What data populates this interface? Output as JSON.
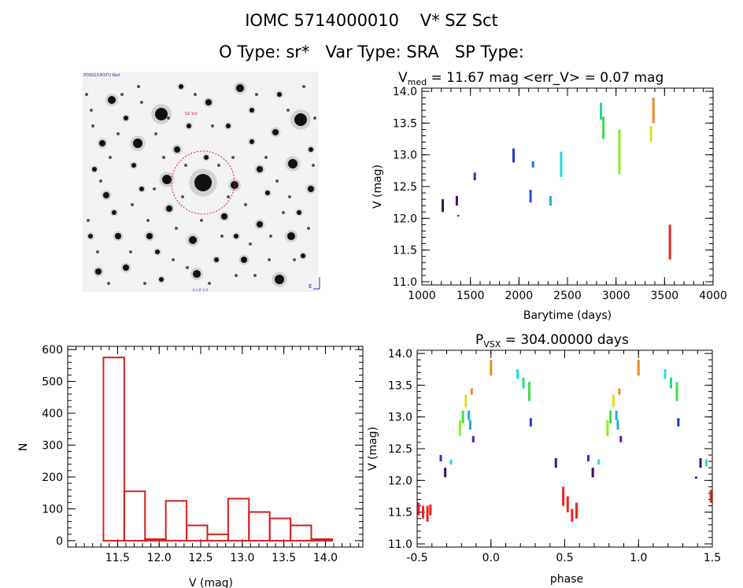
{
  "header": {
    "line1": "IOMC 5714000010    V* SZ Sct",
    "line2": "O Type: sr*   Var Type: SRA   SP Type:"
  },
  "image_panel": {
    "label_top_left": "POSS2/UKSTU Red",
    "label_center": "SZ Sct",
    "label_bottom": "0  1.0'  2.0'"
  },
  "lightcurve": {
    "title_prefix": "V",
    "title_sub": "med",
    "title_rest": " = 11.67 mag <err_V> = 0.07 mag",
    "xlabel": "Barytime (days)",
    "ylabel": "V (mag)"
  },
  "phase_plot": {
    "title_prefix": "P",
    "title_sub": "VSX",
    "title_rest": " = 304.00000 days",
    "xlabel": "phase",
    "ylabel": "V (mag)"
  },
  "histogram": {
    "xlabel": "V (mag)",
    "ylabel": "N"
  },
  "chart_data": [
    {
      "type": "scatter",
      "title": "V_med = 11.67 mag <err_V> = 0.07 mag",
      "xlabel": "Barytime (days)",
      "ylabel": "V (mag)",
      "xlim": [
        1000,
        4000
      ],
      "ylim": [
        14.05,
        10.95
      ],
      "y_inverted": true,
      "xticks": [
        1000,
        1500,
        2000,
        2500,
        3000,
        3500,
        4000
      ],
      "yticks": [
        11.0,
        11.5,
        12.0,
        12.5,
        13.0,
        13.5,
        14.0
      ],
      "segments": [
        {
          "x": 1215,
          "y": [
            12.1,
            12.3
          ],
          "color": "#3d0a5e"
        },
        {
          "x": 1360,
          "y": [
            12.2,
            12.35
          ],
          "color": "#4a0a7a"
        },
        {
          "x": 1375,
          "y": [
            12.03,
            12.05
          ],
          "color": "#4a0a7a"
        },
        {
          "x": 1545,
          "y": [
            12.6,
            12.72
          ],
          "color": "#5a1aa8"
        },
        {
          "x": 1945,
          "y": [
            12.88,
            13.1
          ],
          "color": "#2233cc"
        },
        {
          "x": 2120,
          "y": [
            12.25,
            12.45
          ],
          "color": "#2255dd"
        },
        {
          "x": 2145,
          "y": [
            12.8,
            12.9
          ],
          "color": "#2277dd"
        },
        {
          "x": 2325,
          "y": [
            12.2,
            12.35
          ],
          "color": "#22aadd"
        },
        {
          "x": 2435,
          "y": [
            12.65,
            13.05
          ],
          "color": "#22dddd"
        },
        {
          "x": 2845,
          "y": [
            13.55,
            13.82
          ],
          "color": "#22dd88"
        },
        {
          "x": 2870,
          "y": [
            13.25,
            13.6
          ],
          "color": "#44dd44"
        },
        {
          "x": 3035,
          "y": [
            12.7,
            13.4
          ],
          "color": "#88ee22"
        },
        {
          "x": 3360,
          "y": [
            13.2,
            13.45
          ],
          "color": "#dddd22"
        },
        {
          "x": 3385,
          "y": [
            13.5,
            13.9
          ],
          "color": "#ee8822"
        },
        {
          "x": 3555,
          "y": [
            11.35,
            11.9
          ],
          "color": "#ee2222"
        }
      ]
    },
    {
      "type": "bar",
      "xlabel": "V (mag)",
      "ylabel": "N",
      "xlim": [
        10.9,
        14.45
      ],
      "ylim": [
        -20,
        610
      ],
      "xticks": [
        11.5,
        12.0,
        12.5,
        13.0,
        13.5,
        14.0
      ],
      "yticks": [
        0,
        100,
        200,
        300,
        400,
        500,
        600
      ],
      "bin_edges": [
        11.33,
        11.58,
        11.83,
        12.08,
        12.33,
        12.58,
        12.83,
        13.08,
        13.33,
        13.58,
        13.83,
        14.08
      ],
      "values": [
        575,
        155,
        5,
        125,
        48,
        20,
        132,
        90,
        70,
        48,
        5
      ]
    },
    {
      "type": "scatter",
      "title": "P_VSX = 304.00000 days",
      "xlabel": "phase",
      "ylabel": "V (mag)",
      "xlim": [
        -0.5,
        1.5
      ],
      "ylim": [
        14.05,
        10.95
      ],
      "y_inverted": true,
      "xticks": [
        -0.5,
        0.0,
        0.5,
        1.0,
        1.5
      ],
      "yticks": [
        11.0,
        11.5,
        12.0,
        12.5,
        13.0,
        13.5,
        14.0
      ],
      "segments": [
        {
          "x": -0.49,
          "y": [
            11.45,
            11.65
          ],
          "color": "#ee2222"
        },
        {
          "x": -0.46,
          "y": [
            11.4,
            11.6
          ],
          "color": "#ee2222"
        },
        {
          "x": -0.43,
          "y": [
            11.35,
            11.6
          ],
          "color": "#ee2222"
        },
        {
          "x": -0.41,
          "y": [
            11.45,
            11.62
          ],
          "color": "#ee2222"
        },
        {
          "x": -0.34,
          "y": [
            12.3,
            12.4
          ],
          "color": "#2233cc"
        },
        {
          "x": -0.31,
          "y": [
            12.05,
            12.2
          ],
          "color": "#3d0a5e"
        },
        {
          "x": -0.27,
          "y": [
            12.25,
            12.33
          ],
          "color": "#22dddd"
        },
        {
          "x": -0.21,
          "y": [
            12.7,
            12.95
          ],
          "color": "#88ee22"
        },
        {
          "x": -0.19,
          "y": [
            12.9,
            13.1
          ],
          "color": "#44dd44"
        },
        {
          "x": -0.17,
          "y": [
            13.15,
            13.35
          ],
          "color": "#dddd22"
        },
        {
          "x": -0.15,
          "y": [
            12.95,
            13.1
          ],
          "color": "#22aadd"
        },
        {
          "x": -0.14,
          "y": [
            12.8,
            12.95
          ],
          "color": "#22aadd"
        },
        {
          "x": -0.13,
          "y": [
            13.35,
            13.45
          ],
          "color": "#ee8822"
        },
        {
          "x": -0.12,
          "y": [
            12.6,
            12.7
          ],
          "color": "#5a1aa8"
        },
        {
          "x": 0.0,
          "y": [
            13.65,
            13.9
          ],
          "color": "#ee8822"
        },
        {
          "x": 0.18,
          "y": [
            13.6,
            13.75
          ],
          "color": "#22dddd"
        },
        {
          "x": 0.22,
          "y": [
            13.45,
            13.62
          ],
          "color": "#22dd88"
        },
        {
          "x": 0.26,
          "y": [
            13.25,
            13.55
          ],
          "color": "#44dd44"
        },
        {
          "x": 0.27,
          "y": [
            12.85,
            12.98
          ],
          "color": "#2233cc"
        },
        {
          "x": 0.44,
          "y": [
            12.2,
            12.35
          ],
          "color": "#4a0a7a"
        },
        {
          "x": 0.49,
          "y": [
            11.6,
            11.9
          ],
          "color": "#ee2222"
        },
        {
          "x": 0.52,
          "y": [
            11.5,
            11.75
          ],
          "color": "#ee2222"
        },
        {
          "x": 0.55,
          "y": [
            11.35,
            11.55
          ],
          "color": "#ee2222"
        },
        {
          "x": 0.58,
          "y": [
            11.4,
            11.65
          ],
          "color": "#ee2222"
        },
        {
          "x": 0.66,
          "y": [
            12.3,
            12.4
          ],
          "color": "#2233cc"
        },
        {
          "x": 0.69,
          "y": [
            12.05,
            12.2
          ],
          "color": "#3d0a5e"
        },
        {
          "x": 0.73,
          "y": [
            12.25,
            12.33
          ],
          "color": "#22dddd"
        },
        {
          "x": 0.79,
          "y": [
            12.7,
            12.95
          ],
          "color": "#88ee22"
        },
        {
          "x": 0.81,
          "y": [
            12.9,
            13.1
          ],
          "color": "#44dd44"
        },
        {
          "x": 0.83,
          "y": [
            13.15,
            13.35
          ],
          "color": "#dddd22"
        },
        {
          "x": 0.85,
          "y": [
            12.95,
            13.1
          ],
          "color": "#22aadd"
        },
        {
          "x": 0.86,
          "y": [
            12.8,
            12.95
          ],
          "color": "#22aadd"
        },
        {
          "x": 0.87,
          "y": [
            13.35,
            13.45
          ],
          "color": "#ee8822"
        },
        {
          "x": 0.88,
          "y": [
            12.6,
            12.7
          ],
          "color": "#5a1aa8"
        },
        {
          "x": 1.0,
          "y": [
            13.65,
            13.9
          ],
          "color": "#ee8822"
        },
        {
          "x": 1.18,
          "y": [
            13.6,
            13.75
          ],
          "color": "#22dddd"
        },
        {
          "x": 1.22,
          "y": [
            13.45,
            13.62
          ],
          "color": "#22dd88"
        },
        {
          "x": 1.26,
          "y": [
            13.25,
            13.55
          ],
          "color": "#44dd44"
        },
        {
          "x": 1.27,
          "y": [
            12.85,
            12.98
          ],
          "color": "#2233cc"
        },
        {
          "x": 1.39,
          "y": [
            12.03,
            12.06
          ],
          "color": "#3d0a5e"
        },
        {
          "x": 1.42,
          "y": [
            12.2,
            12.35
          ],
          "color": "#4a0a7a"
        },
        {
          "x": 1.46,
          "y": [
            12.22,
            12.33
          ],
          "color": "#22dddd"
        },
        {
          "x": 1.49,
          "y": [
            11.65,
            11.85
          ],
          "color": "#ee2222"
        }
      ]
    }
  ]
}
